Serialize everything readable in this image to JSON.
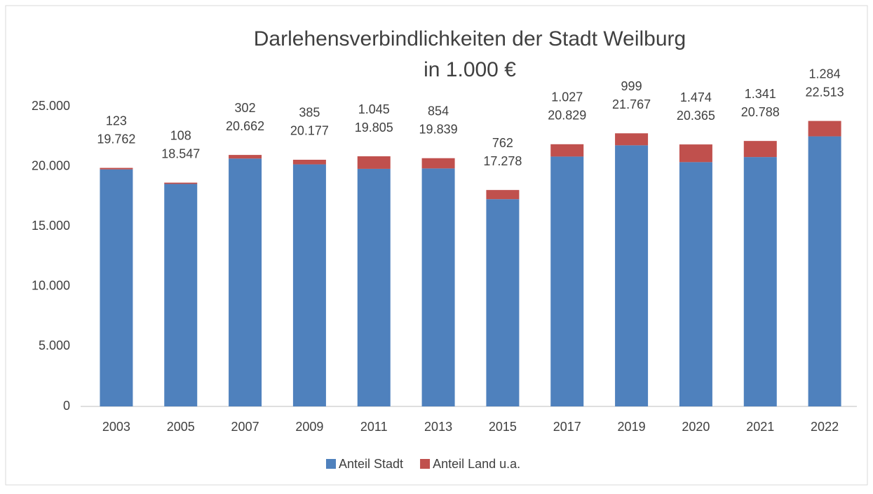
{
  "chart_data": {
    "type": "stacked_bar",
    "title": "Darlehensverbindlichkeiten der Stadt Weilburg",
    "subtitle": "in 1.000 €",
    "categories": [
      "2003",
      "2005",
      "2007",
      "2009",
      "2011",
      "2013",
      "2015",
      "2017",
      "2019",
      "2020",
      "2021",
      "2022"
    ],
    "series": [
      {
        "name": "Anteil Stadt",
        "color": "#4f81bd",
        "values": [
          19762,
          18547,
          20662,
          20177,
          19805,
          19839,
          17278,
          20829,
          21767,
          20365,
          20788,
          22513
        ],
        "value_labels": [
          "19.762",
          "18.547",
          "20.662",
          "20.177",
          "19.805",
          "19.839",
          "17.278",
          "20.829",
          "21.767",
          "20.365",
          "20.788",
          "22.513"
        ]
      },
      {
        "name": "Anteil Land u.a.",
        "color": "#c0504d",
        "values": [
          123,
          108,
          302,
          385,
          1045,
          854,
          762,
          1027,
          999,
          1474,
          1341,
          1284
        ],
        "value_labels": [
          "123",
          "108",
          "302",
          "385",
          "1.045",
          "854",
          "762",
          "1.027",
          "999",
          "1.474",
          "1.341",
          "1.284"
        ]
      }
    ],
    "ylim": [
      0,
      25000
    ],
    "yticks": [
      0,
      {
        "value": 5000,
        "label": "5.000"
      },
      {
        "value": 10000,
        "label": "10.000"
      },
      {
        "value": 15000,
        "label": "15.000"
      },
      {
        "value": 20000,
        "label": "20.000"
      },
      {
        "value": 25000,
        "label": "25.000"
      }
    ],
    "grid": false,
    "legend": "bottom"
  }
}
